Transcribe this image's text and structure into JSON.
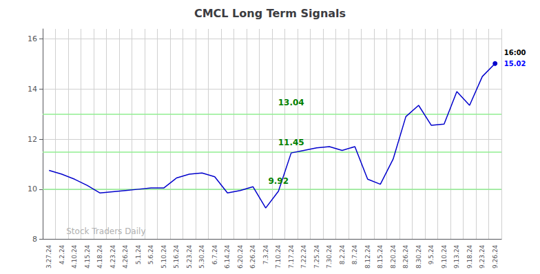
{
  "chart_data": {
    "type": "line",
    "title": "CMCL Long Term Signals",
    "categories": [
      "3.27.24",
      "4.2.24",
      "4.10.24",
      "4.15.24",
      "4.18.24",
      "4.23.24",
      "4.26.24",
      "5.1.24",
      "5.6.24",
      "5.10.24",
      "5.16.24",
      "5.23.24",
      "5.30.24",
      "6.7.24",
      "6.14.24",
      "6.20.24",
      "6.26.24",
      "7.3.24",
      "7.10.24",
      "7.17.24",
      "7.22.24",
      "7.25.24",
      "7.30.24",
      "8.2.24",
      "8.7.24",
      "8.12.24",
      "8.15.24",
      "8.20.24",
      "8.26.24",
      "8.30.24",
      "9.5.24",
      "9.10.24",
      "9.13.24",
      "9.18.24",
      "9.23.24",
      "9.26.24"
    ],
    "values": [
      10.75,
      10.6,
      10.4,
      10.15,
      9.85,
      9.9,
      9.95,
      10.0,
      10.05,
      10.05,
      10.45,
      10.6,
      10.65,
      10.5,
      9.85,
      9.95,
      10.1,
      9.25,
      9.92,
      11.45,
      11.55,
      11.65,
      11.7,
      11.55,
      11.7,
      10.4,
      10.2,
      11.2,
      12.9,
      13.35,
      12.55,
      12.6,
      13.9,
      13.35,
      14.5,
      15.02
    ],
    "color": "#0000cc",
    "reference_lines": [
      10.0,
      11.5,
      13.0
    ],
    "reference_line_color": "#90ee90",
    "annotations": [
      {
        "text": "9.92",
        "x": "7.10.24",
        "y": 9.92,
        "color": "green"
      },
      {
        "text": "11.45",
        "x": "7.17.24",
        "y": 11.45,
        "color": "green"
      },
      {
        "text": "13.04",
        "x": "7.17.24",
        "y": 13.04,
        "color": "green"
      }
    ],
    "end_labels": [
      {
        "text": "16:00",
        "color": "black"
      },
      {
        "text": "15.02",
        "color": "blue"
      }
    ],
    "watermark": "Stock Traders Daily",
    "ylim": [
      8.0,
      16.4
    ],
    "yticks": [
      8,
      10,
      12,
      14,
      16
    ],
    "grid": true
  }
}
